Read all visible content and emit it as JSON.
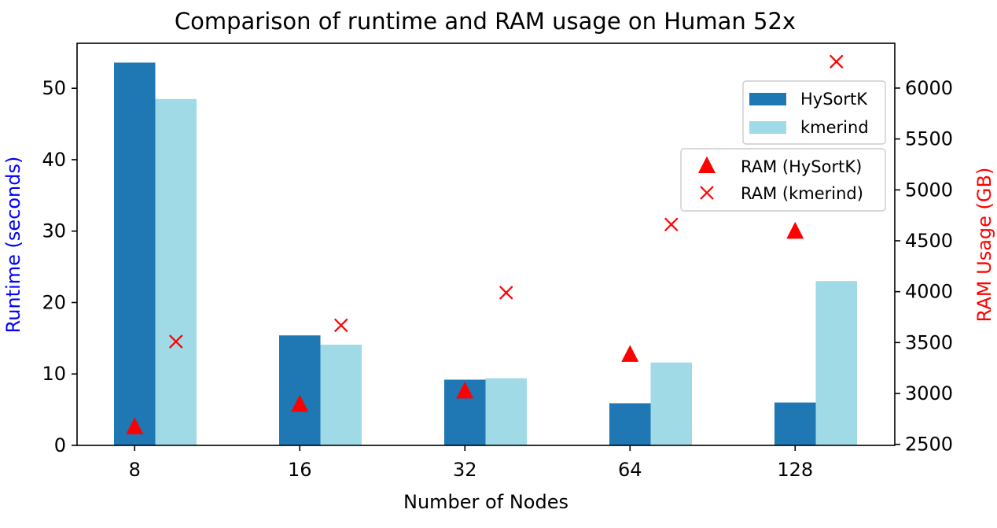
{
  "chart_data": {
    "type": "bar",
    "title": "Comparison of runtime and RAM usage on Human 52x",
    "xlabel": "Number of Nodes",
    "ylabel_left": "Runtime (seconds)",
    "ylabel_right": "RAM Usage (GB)",
    "ylabel_left_color": "#0000ff",
    "ylabel_right_color": "#ff0000",
    "categories": [
      "8",
      "16",
      "32",
      "64",
      "128"
    ],
    "ylim_left": [
      0,
      56.3
    ],
    "ylim_right": [
      2490,
      6440
    ],
    "yticks_left": [
      0,
      10,
      20,
      30,
      40,
      50
    ],
    "yticks_right": [
      2500,
      3000,
      3500,
      4000,
      4500,
      5000,
      5500,
      6000
    ],
    "grid": false,
    "series": [
      {
        "name": "HySortK",
        "kind": "bar",
        "axis": "left",
        "color": "#1f77b4",
        "values": [
          53.6,
          15.4,
          9.2,
          5.9,
          6.0
        ]
      },
      {
        "name": "kmerind",
        "kind": "bar",
        "axis": "left",
        "color": "#9fdae6",
        "values": [
          48.5,
          14.1,
          9.4,
          11.6,
          23.0
        ]
      },
      {
        "name": "RAM (HySortK)",
        "kind": "scatter",
        "marker": "triangle",
        "axis": "right",
        "color": "#ff0000",
        "values": [
          2670,
          2890,
          3020,
          3380,
          4590
        ]
      },
      {
        "name": "RAM (kmerind)",
        "kind": "scatter",
        "marker": "x",
        "axis": "right",
        "color": "#ff0000",
        "values": [
          3510,
          3670,
          3990,
          4660,
          6260
        ]
      }
    ],
    "legends": [
      {
        "placement": "top-right",
        "entries": [
          "HySortK",
          "kmerind"
        ]
      },
      {
        "placement": "center-right",
        "entries": [
          "RAM (HySortK)",
          "RAM (kmerind)"
        ]
      }
    ]
  }
}
